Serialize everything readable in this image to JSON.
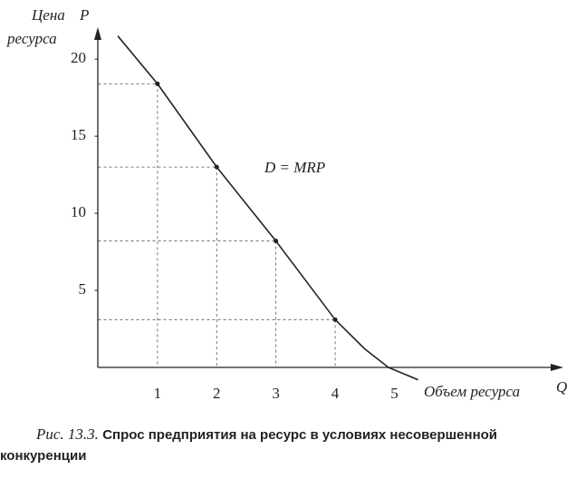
{
  "chart_data": {
    "type": "line",
    "ylabel": [
      "Цена",
      "ресурса"
    ],
    "ysymbol": "P",
    "xlabel": "Объем ресурса",
    "xsymbol": "Q",
    "annotation": "D = MRP",
    "x": [
      0.33,
      1,
      2,
      3,
      4,
      4.5,
      4.9,
      5.4
    ],
    "values": [
      21.5,
      18.4,
      13,
      8.2,
      3.1,
      1.2,
      0,
      -0.8
    ],
    "points": {
      "x": [
        1,
        2,
        3,
        4
      ],
      "values": [
        18.4,
        13,
        8.2,
        3.1
      ]
    },
    "color": "#222222",
    "xlim": [
      0,
      7.7
    ],
    "ylim": [
      0,
      22.6
    ],
    "xticks": [
      1,
      2,
      3,
      4,
      5
    ],
    "yticks": [
      5,
      10,
      15,
      20
    ],
    "caption_label": "Рис. 13.3.",
    "caption": "Спрос предприятия на ресурс в условиях несовершенной конкуренции"
  }
}
